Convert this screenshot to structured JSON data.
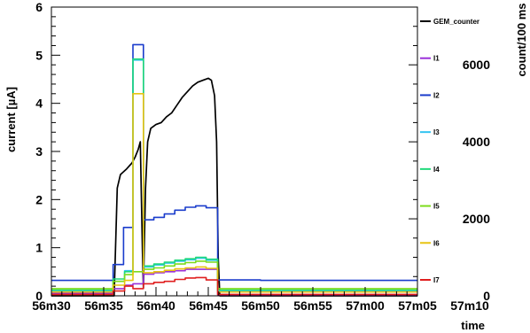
{
  "chart_data": {
    "type": "line",
    "title": "",
    "xlabel": "time",
    "ylabel_left": "current [µA]",
    "ylabel_right": "count/100 ms",
    "x_unit": "time of day (minutes after 56m00)",
    "x_ticks": [
      {
        "x": 30,
        "label": "56m30"
      },
      {
        "x": 35,
        "label": "56m35"
      },
      {
        "x": 40,
        "label": "56m40"
      },
      {
        "x": 45,
        "label": "56m45"
      },
      {
        "x": 50,
        "label": "56m50"
      },
      {
        "x": 55,
        "label": "56m55"
      },
      {
        "x": 60,
        "label": "57m00"
      },
      {
        "x": 65,
        "label": "57m05"
      },
      {
        "x": 70,
        "label": "57m10"
      }
    ],
    "xlim": [
      30,
      65
    ],
    "ylim_left": [
      0,
      6
    ],
    "ylim_right": [
      0,
      7500
    ],
    "y_ticks_left": [
      0,
      1,
      2,
      3,
      4,
      5,
      6
    ],
    "y_ticks_right": [
      0,
      2000,
      4000,
      6000
    ],
    "grid": false,
    "legend_position": "right",
    "series": [
      {
        "name": "GEM_counter",
        "axis": "right",
        "color": "#000000",
        "style": "line",
        "points": [
          [
            30,
            0
          ],
          [
            36,
            0
          ],
          [
            36.3,
            2800
          ],
          [
            36.6,
            3150
          ],
          [
            37.2,
            3300
          ],
          [
            37.7,
            3450
          ],
          [
            38,
            3600
          ],
          [
            38.3,
            3800
          ],
          [
            38.5,
            4000
          ],
          [
            38.7,
            1200
          ],
          [
            38.8,
            200
          ],
          [
            39.0,
            2800
          ],
          [
            39.2,
            4000
          ],
          [
            39.5,
            4350
          ],
          [
            40,
            4450
          ],
          [
            40.5,
            4500
          ],
          [
            41,
            4650
          ],
          [
            41.5,
            4750
          ],
          [
            42,
            4950
          ],
          [
            42.5,
            5150
          ],
          [
            43,
            5300
          ],
          [
            43.5,
            5450
          ],
          [
            44,
            5550
          ],
          [
            44.5,
            5600
          ],
          [
            45,
            5650
          ],
          [
            45.3,
            5600
          ],
          [
            45.6,
            5200
          ],
          [
            45.8,
            4000
          ],
          [
            45.95,
            1000
          ],
          [
            46.1,
            0
          ],
          [
            65,
            0
          ]
        ]
      },
      {
        "name": "I1",
        "axis": "left",
        "color": "#9b30d9",
        "style": "step",
        "points": [
          [
            30,
            0.05
          ],
          [
            35,
            0.05
          ],
          [
            35.9,
            0.15
          ],
          [
            37,
            0.22
          ],
          [
            37.8,
            0.25
          ],
          [
            38.8,
            0.45
          ],
          [
            39.8,
            0.48
          ],
          [
            40.8,
            0.5
          ],
          [
            41.8,
            0.52
          ],
          [
            42.8,
            0.55
          ],
          [
            43.8,
            0.55
          ],
          [
            44.8,
            0.55
          ],
          [
            45.9,
            0.02
          ],
          [
            65,
            0.02
          ]
        ]
      },
      {
        "name": "I2",
        "axis": "left",
        "color": "#1a3ccc",
        "style": "step",
        "points": [
          [
            30,
            0.32
          ],
          [
            35,
            0.32
          ],
          [
            35.9,
            0.65
          ],
          [
            36.9,
            1.42
          ],
          [
            37.8,
            5.22
          ],
          [
            38.8,
            1.58
          ],
          [
            39.8,
            1.63
          ],
          [
            40.8,
            1.7
          ],
          [
            41.8,
            1.78
          ],
          [
            42.8,
            1.84
          ],
          [
            43.8,
            1.87
          ],
          [
            44.8,
            1.83
          ],
          [
            45.9,
            0.33
          ],
          [
            50,
            0.32
          ],
          [
            65,
            0.32
          ]
        ]
      },
      {
        "name": "I3",
        "axis": "left",
        "color": "#33c4f0",
        "style": "step",
        "points": [
          [
            30,
            0.1
          ],
          [
            35,
            0.1
          ],
          [
            35.9,
            0.3
          ],
          [
            37,
            0.52
          ],
          [
            37.8,
            4.9
          ],
          [
            38.8,
            0.6
          ],
          [
            39.8,
            0.64
          ],
          [
            40.8,
            0.68
          ],
          [
            41.8,
            0.72
          ],
          [
            42.8,
            0.75
          ],
          [
            43.8,
            0.78
          ],
          [
            44.8,
            0.74
          ],
          [
            45.9,
            0.1
          ],
          [
            65,
            0.1
          ]
        ]
      },
      {
        "name": "I4",
        "axis": "left",
        "color": "#21d97a",
        "style": "step",
        "points": [
          [
            30,
            0.12
          ],
          [
            35,
            0.12
          ],
          [
            35.9,
            0.35
          ],
          [
            37,
            0.5
          ],
          [
            37.8,
            4.92
          ],
          [
            38.8,
            0.62
          ],
          [
            39.8,
            0.66
          ],
          [
            40.8,
            0.7
          ],
          [
            41.8,
            0.74
          ],
          [
            42.8,
            0.77
          ],
          [
            43.8,
            0.8
          ],
          [
            44.8,
            0.76
          ],
          [
            45.9,
            0.12
          ],
          [
            65,
            0.12
          ]
        ]
      },
      {
        "name": "I5",
        "axis": "left",
        "color": "#7ddc1c",
        "style": "step",
        "points": [
          [
            30,
            0.15
          ],
          [
            35,
            0.15
          ],
          [
            35.9,
            0.3
          ],
          [
            37,
            0.44
          ],
          [
            37.8,
            0.5
          ],
          [
            38.8,
            0.55
          ],
          [
            39.8,
            0.58
          ],
          [
            40.8,
            0.62
          ],
          [
            41.8,
            0.66
          ],
          [
            42.8,
            0.69
          ],
          [
            43.8,
            0.72
          ],
          [
            44.8,
            0.7
          ],
          [
            45.9,
            0.15
          ],
          [
            65,
            0.15
          ]
        ]
      },
      {
        "name": "I6",
        "axis": "left",
        "color": "#e8c310",
        "style": "step",
        "points": [
          [
            30,
            0.08
          ],
          [
            35,
            0.08
          ],
          [
            35.9,
            0.22
          ],
          [
            37,
            0.32
          ],
          [
            37.8,
            4.2
          ],
          [
            38.8,
            0.48
          ],
          [
            39.8,
            0.5
          ],
          [
            40.8,
            0.53
          ],
          [
            41.8,
            0.56
          ],
          [
            42.8,
            0.58
          ],
          [
            43.8,
            0.6
          ],
          [
            44.8,
            0.57
          ],
          [
            45.9,
            0.08
          ],
          [
            65,
            0.08
          ]
        ]
      },
      {
        "name": "I7",
        "axis": "left",
        "color": "#e01f1f",
        "style": "step",
        "points": [
          [
            30,
            0.03
          ],
          [
            35,
            0.03
          ],
          [
            35.9,
            0.1
          ],
          [
            37,
            0.2
          ],
          [
            37.8,
            0.15
          ],
          [
            38.8,
            0.25
          ],
          [
            39.8,
            0.28
          ],
          [
            40.8,
            0.3
          ],
          [
            41.8,
            0.34
          ],
          [
            42.8,
            0.37
          ],
          [
            43.8,
            0.38
          ],
          [
            44.8,
            0.33
          ],
          [
            45.9,
            0.03
          ],
          [
            65,
            0.03
          ]
        ]
      }
    ]
  }
}
